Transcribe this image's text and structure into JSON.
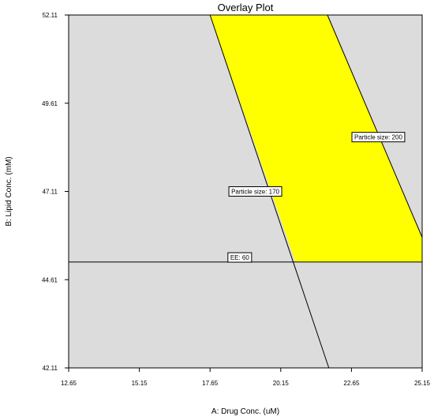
{
  "chart_data": {
    "type": "contour-overlay",
    "title": "Overlay Plot",
    "xlabel": "A: Drug Conc. (uM)",
    "ylabel": "B: Lipid Conc. (mM)",
    "xlim": [
      12.65,
      25.15
    ],
    "ylim": [
      42.11,
      52.11
    ],
    "x_ticks": [
      "12.65",
      "15.15",
      "17.65",
      "20.15",
      "22.65",
      "25.15"
    ],
    "y_ticks": [
      "42.11",
      "44.61",
      "47.11",
      "49.61",
      "52.11"
    ],
    "grid": false,
    "colors": {
      "plot_background": "#dcdcdc",
      "feasible_region": "#ffff00",
      "lines": "#000000",
      "label_box": "#ffffff"
    },
    "contours": [
      {
        "label": "Particle size: 170",
        "points": [
          [
            17.65,
            52.11
          ],
          [
            21.85,
            42.11
          ]
        ],
        "label_at": [
          19.25,
          47.11
        ]
      },
      {
        "label": "Particle size: 200",
        "points": [
          [
            21.8,
            52.11
          ],
          [
            25.15,
            45.81
          ]
        ],
        "label_at": [
          23.6,
          48.65
        ]
      },
      {
        "label": "EE: 60",
        "points": [
          [
            12.65,
            45.11
          ],
          [
            25.15,
            45.11
          ]
        ],
        "label_at": [
          18.7,
          45.24
        ]
      }
    ],
    "feasible_region": [
      [
        17.65,
        52.11
      ],
      [
        21.8,
        52.11
      ],
      [
        25.15,
        45.81
      ],
      [
        25.15,
        45.11
      ],
      [
        20.67,
        45.11
      ]
    ]
  }
}
